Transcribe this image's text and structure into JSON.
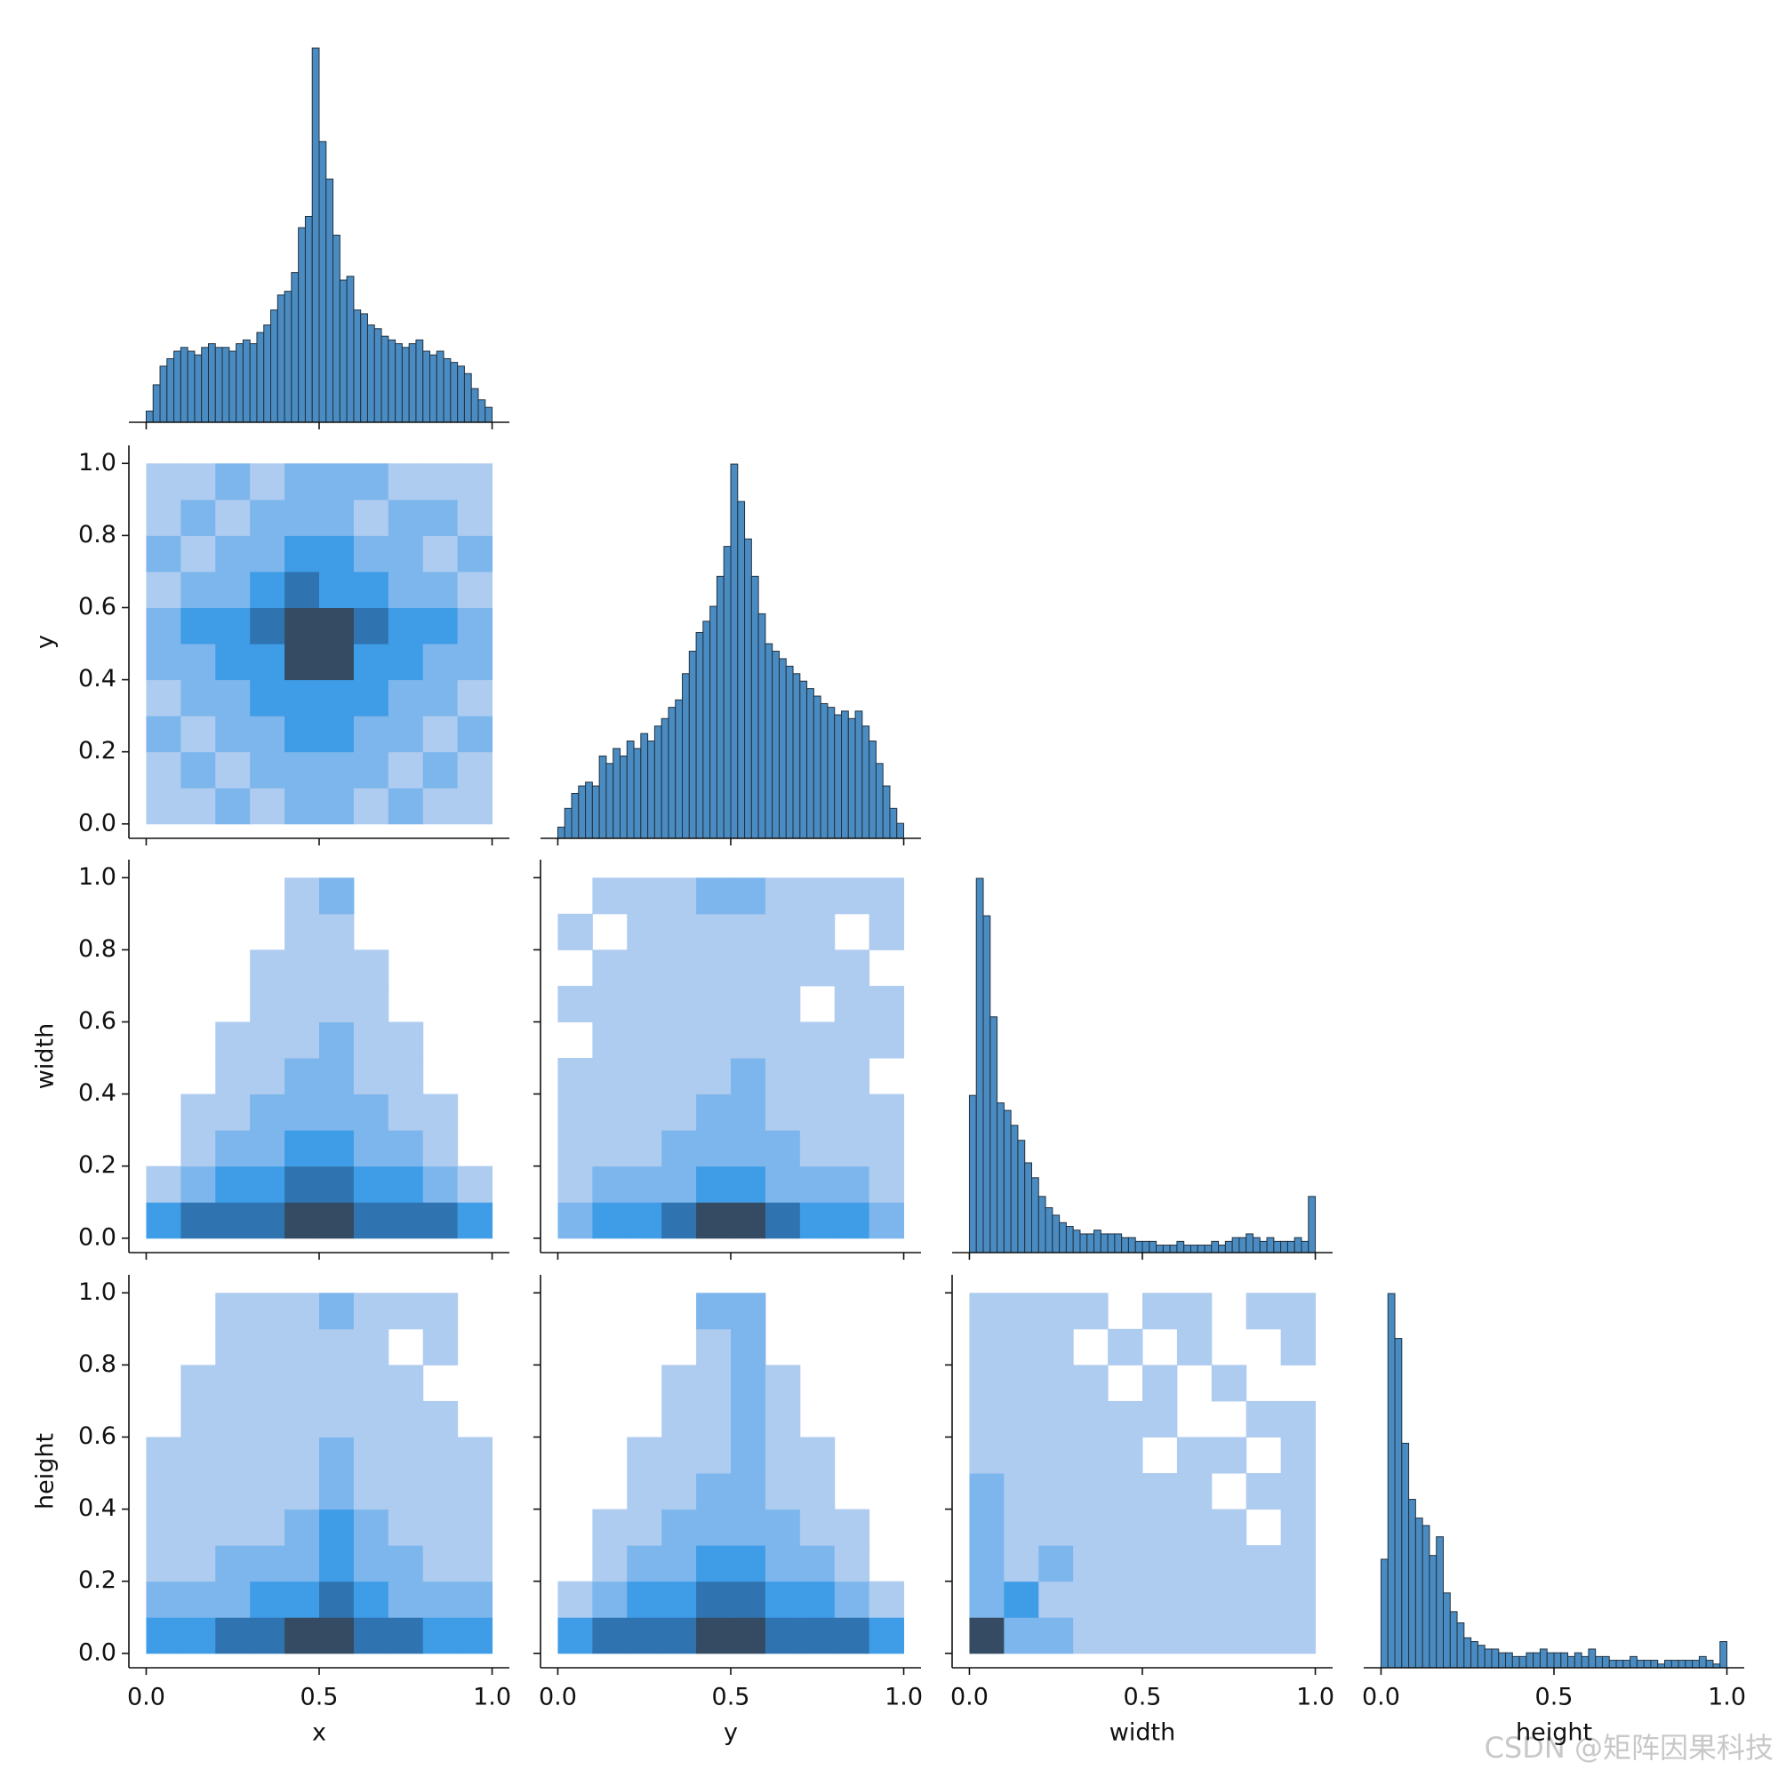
{
  "chart_data": {
    "type": "pairplot",
    "variables": [
      "x",
      "y",
      "width",
      "height"
    ],
    "xlim": [
      -0.05,
      1.05
    ],
    "ylim": [
      -0.04,
      1.05
    ],
    "xticks": [
      {
        "value": 0,
        "label": "0.0"
      },
      {
        "value": 0.5,
        "label": "0.5"
      },
      {
        "value": 1,
        "label": "1.0"
      }
    ],
    "yticks": [
      {
        "value": 0,
        "label": "0.0"
      },
      {
        "value": 0.2,
        "label": "0.2"
      },
      {
        "value": 0.4,
        "label": "0.4"
      },
      {
        "value": 0.6,
        "label": "0.6"
      },
      {
        "value": 0.8,
        "label": "0.8"
      },
      {
        "value": 1,
        "label": "1.0"
      }
    ],
    "hist_ylim": [
      0,
      105
    ],
    "hist_color": "#4a8cc2",
    "edge_color": "#22313f",
    "cmap": [
      "#aecbf0",
      "#7db6ec",
      "#3f9ce6",
      "#2f74b0",
      "#344b63"
    ],
    "bins": [
      0,
      0.02,
      0.04,
      0.06,
      0.08,
      0.1,
      0.12,
      0.14,
      0.16,
      0.18,
      0.2,
      0.22,
      0.24,
      0.26,
      0.28,
      0.3,
      0.32,
      0.34,
      0.36,
      0.38,
      0.4,
      0.42,
      0.44,
      0.46,
      0.48,
      0.5,
      0.52,
      0.54,
      0.56,
      0.58,
      0.6,
      0.62,
      0.64,
      0.66,
      0.68,
      0.7,
      0.72,
      0.74,
      0.76,
      0.78,
      0.8,
      0.82,
      0.84,
      0.86,
      0.88,
      0.9,
      0.92,
      0.94,
      0.96,
      0.98,
      1
    ],
    "bins2d": [
      0,
      0.1,
      0.2,
      0.3,
      0.4,
      0.5,
      0.6,
      0.7,
      0.8,
      0.9,
      1
    ],
    "diagonal": [
      {
        "values": [
          3,
          10,
          15,
          17,
          19,
          20,
          19,
          18,
          20,
          21,
          20,
          20,
          19,
          21,
          22,
          21,
          24,
          26,
          30,
          34,
          35,
          40,
          52,
          55,
          100,
          75,
          65,
          50,
          38,
          39,
          30,
          29,
          26,
          25,
          23,
          22,
          21,
          20,
          21,
          22,
          19,
          18,
          19,
          17,
          16,
          15,
          13,
          9,
          6,
          4
        ]
      },
      {
        "values": [
          3,
          8,
          12,
          14,
          15,
          14,
          22,
          20,
          24,
          22,
          26,
          24,
          28,
          26,
          30,
          32,
          35,
          37,
          44,
          50,
          55,
          58,
          62,
          70,
          78,
          100,
          90,
          80,
          70,
          60,
          52,
          50,
          48,
          46,
          44,
          42,
          40,
          38,
          36,
          35,
          33,
          34,
          32,
          34,
          30,
          26,
          20,
          14,
          8,
          4
        ]
      },
      {
        "values": [
          42,
          100,
          90,
          63,
          40,
          38,
          34,
          30,
          24,
          20,
          15,
          12,
          10,
          8,
          7,
          6,
          5,
          5,
          6,
          5,
          5,
          5,
          4,
          4,
          3,
          3,
          3,
          2,
          2,
          2,
          3,
          2,
          2,
          2,
          2,
          3,
          2,
          3,
          4,
          4,
          5,
          4,
          3,
          4,
          3,
          3,
          3,
          4,
          3,
          15
        ]
      },
      {
        "values": [
          29,
          100,
          88,
          60,
          45,
          40,
          38,
          30,
          35,
          20,
          15,
          12,
          8,
          7,
          6,
          5,
          5,
          4,
          4,
          3,
          3,
          4,
          4,
          5,
          4,
          4,
          4,
          3,
          4,
          3,
          5,
          3,
          3,
          2,
          2,
          2,
          3,
          2,
          2,
          2,
          1,
          2,
          2,
          2,
          2,
          2,
          3,
          2,
          1,
          7
        ]
      }
    ],
    "offdiag": [
      {
        "values": [
          [
            1,
            1,
            2,
            1,
            2,
            2,
            1,
            2,
            1,
            1
          ],
          [
            1,
            2,
            1,
            2,
            2,
            2,
            2,
            1,
            2,
            1
          ],
          [
            2,
            1,
            2,
            2,
            3,
            3,
            2,
            2,
            1,
            2
          ],
          [
            1,
            2,
            2,
            3,
            3,
            3,
            3,
            2,
            2,
            1
          ],
          [
            2,
            2,
            3,
            3,
            5,
            5,
            3,
            3,
            2,
            2
          ],
          [
            2,
            3,
            3,
            4,
            5,
            5,
            4,
            3,
            3,
            2
          ],
          [
            1,
            2,
            2,
            3,
            4,
            3,
            3,
            2,
            2,
            1
          ],
          [
            2,
            1,
            2,
            2,
            3,
            3,
            2,
            2,
            1,
            2
          ],
          [
            1,
            2,
            1,
            2,
            2,
            2,
            1,
            2,
            2,
            1
          ],
          [
            1,
            1,
            2,
            1,
            2,
            2,
            2,
            1,
            1,
            1
          ]
        ]
      },
      {
        "values": [
          [
            3,
            4,
            4,
            4,
            5,
            5,
            4,
            4,
            4,
            3
          ],
          [
            1,
            2,
            3,
            3,
            4,
            4,
            3,
            3,
            2,
            1
          ],
          [
            0,
            1,
            2,
            2,
            3,
            3,
            2,
            2,
            1,
            0
          ],
          [
            0,
            1,
            1,
            2,
            2,
            2,
            2,
            1,
            1,
            0
          ],
          [
            0,
            0,
            1,
            1,
            2,
            2,
            1,
            1,
            0,
            0
          ],
          [
            0,
            0,
            1,
            1,
            1,
            2,
            1,
            1,
            0,
            0
          ],
          [
            0,
            0,
            0,
            1,
            1,
            1,
            1,
            0,
            0,
            0
          ],
          [
            0,
            0,
            0,
            1,
            1,
            1,
            1,
            0,
            0,
            0
          ],
          [
            0,
            0,
            0,
            0,
            1,
            1,
            0,
            0,
            0,
            0
          ],
          [
            0,
            0,
            0,
            0,
            1,
            2,
            0,
            0,
            0,
            0
          ]
        ]
      },
      {
        "values": [
          [
            2,
            3,
            3,
            4,
            5,
            5,
            4,
            3,
            3,
            2
          ],
          [
            1,
            2,
            2,
            2,
            3,
            3,
            2,
            2,
            2,
            1
          ],
          [
            1,
            1,
            1,
            2,
            2,
            2,
            2,
            1,
            1,
            1
          ],
          [
            1,
            1,
            1,
            1,
            2,
            2,
            1,
            1,
            1,
            1
          ],
          [
            1,
            1,
            1,
            1,
            1,
            2,
            1,
            1,
            1,
            0
          ],
          [
            0,
            1,
            1,
            1,
            1,
            1,
            1,
            1,
            1,
            1
          ],
          [
            1,
            1,
            1,
            1,
            1,
            1,
            1,
            0,
            1,
            1
          ],
          [
            0,
            1,
            1,
            1,
            1,
            1,
            1,
            1,
            1,
            0
          ],
          [
            1,
            0,
            1,
            1,
            1,
            1,
            1,
            1,
            0,
            1
          ],
          [
            0,
            1,
            1,
            1,
            2,
            2,
            1,
            1,
            1,
            1
          ]
        ]
      },
      {
        "values": [
          [
            3,
            3,
            4,
            4,
            5,
            5,
            4,
            4,
            3,
            3
          ],
          [
            2,
            2,
            2,
            3,
            3,
            4,
            3,
            2,
            2,
            2
          ],
          [
            1,
            1,
            2,
            2,
            2,
            3,
            2,
            2,
            1,
            1
          ],
          [
            1,
            1,
            1,
            1,
            2,
            3,
            2,
            1,
            1,
            1
          ],
          [
            1,
            1,
            1,
            1,
            1,
            2,
            1,
            1,
            1,
            1
          ],
          [
            1,
            1,
            1,
            1,
            1,
            2,
            1,
            1,
            1,
            1
          ],
          [
            0,
            1,
            1,
            1,
            1,
            1,
            1,
            1,
            1,
            0
          ],
          [
            0,
            1,
            1,
            1,
            1,
            1,
            1,
            1,
            0,
            0
          ],
          [
            0,
            0,
            1,
            1,
            1,
            1,
            1,
            0,
            1,
            0
          ],
          [
            0,
            0,
            1,
            1,
            1,
            2,
            1,
            1,
            1,
            0
          ]
        ]
      },
      {
        "values": [
          [
            3,
            4,
            4,
            4,
            5,
            5,
            4,
            4,
            4,
            3
          ],
          [
            1,
            2,
            3,
            3,
            4,
            4,
            3,
            3,
            2,
            1
          ],
          [
            0,
            1,
            2,
            2,
            3,
            3,
            2,
            2,
            1,
            0
          ],
          [
            0,
            1,
            1,
            2,
            2,
            2,
            2,
            1,
            1,
            0
          ],
          [
            0,
            0,
            1,
            1,
            2,
            2,
            1,
            1,
            0,
            0
          ],
          [
            0,
            0,
            1,
            1,
            1,
            2,
            1,
            1,
            0,
            0
          ],
          [
            0,
            0,
            0,
            1,
            1,
            2,
            1,
            0,
            0,
            0
          ],
          [
            0,
            0,
            0,
            1,
            1,
            2,
            1,
            0,
            0,
            0
          ],
          [
            0,
            0,
            0,
            0,
            1,
            2,
            0,
            0,
            0,
            0
          ],
          [
            0,
            0,
            0,
            0,
            2,
            2,
            0,
            0,
            0,
            0
          ]
        ]
      },
      {
        "values": [
          [
            5,
            2,
            2,
            1,
            1,
            1,
            1,
            1,
            1,
            1
          ],
          [
            2,
            3,
            1,
            1,
            1,
            1,
            1,
            1,
            1,
            1
          ],
          [
            2,
            1,
            2,
            1,
            1,
            1,
            1,
            1,
            1,
            1
          ],
          [
            2,
            1,
            1,
            1,
            1,
            1,
            1,
            1,
            0,
            1
          ],
          [
            2,
            1,
            1,
            1,
            1,
            1,
            1,
            0,
            1,
            1
          ],
          [
            1,
            1,
            1,
            1,
            1,
            0,
            1,
            1,
            0,
            1
          ],
          [
            1,
            1,
            1,
            1,
            1,
            1,
            0,
            0,
            1,
            1
          ],
          [
            1,
            1,
            1,
            1,
            0,
            1,
            0,
            1,
            0,
            0
          ],
          [
            1,
            1,
            1,
            0,
            1,
            0,
            1,
            0,
            0,
            1
          ],
          [
            1,
            1,
            1,
            1,
            0,
            1,
            1,
            0,
            1,
            1
          ]
        ]
      }
    ],
    "watermark": "CSDN @矩阵因果科技"
  }
}
